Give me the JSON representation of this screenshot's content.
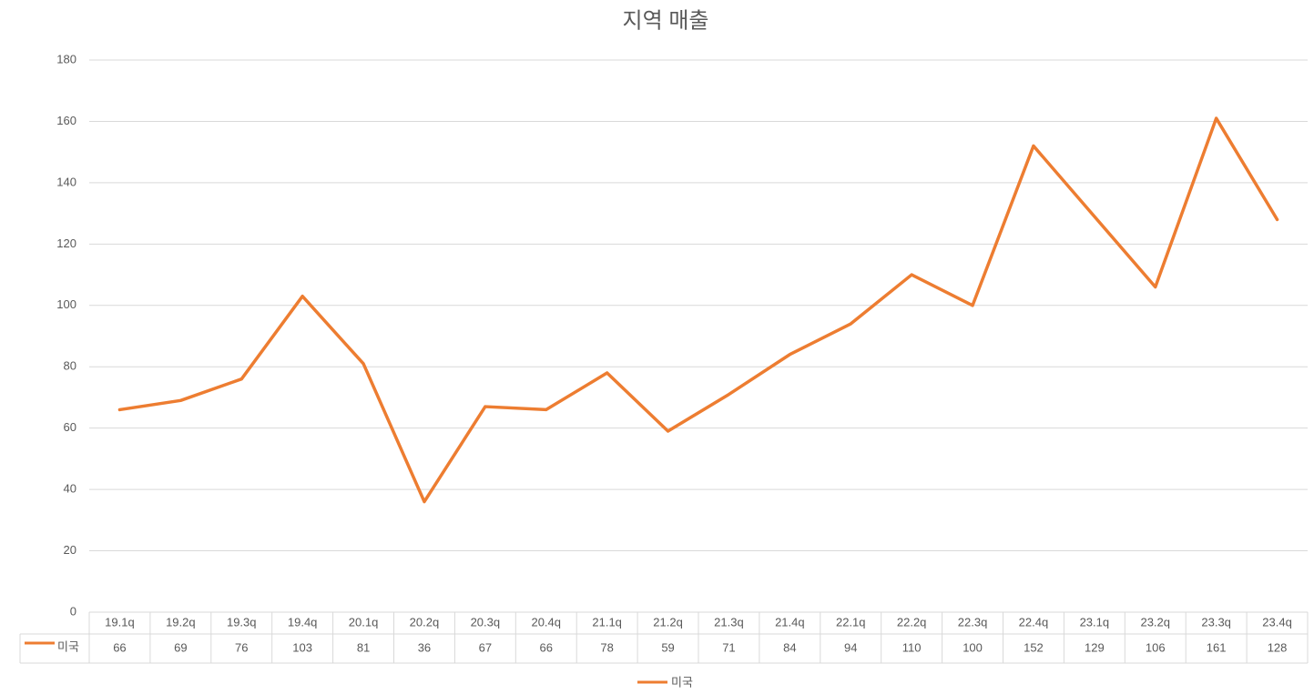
{
  "chart_data": {
    "type": "line",
    "title": "지역 매출",
    "categories": [
      "19.1q",
      "19.2q",
      "19.3q",
      "19.4q",
      "20.1q",
      "20.2q",
      "20.3q",
      "20.4q",
      "21.1q",
      "21.2q",
      "21.3q",
      "21.4q",
      "22.1q",
      "22.2q",
      "22.3q",
      "22.4q",
      "23.1q",
      "23.2q",
      "23.3q",
      "23.4q"
    ],
    "series": [
      {
        "name": "미국",
        "color": "#ed7d31",
        "values": [
          66,
          69,
          76,
          103,
          81,
          36,
          67,
          66,
          78,
          59,
          71,
          84,
          94,
          110,
          100,
          152,
          129,
          106,
          161,
          128
        ]
      }
    ],
    "ylim": [
      0,
      180
    ],
    "yticks": [
      0,
      20,
      40,
      60,
      80,
      100,
      120,
      140,
      160,
      180
    ],
    "grid": true,
    "legend": "bottom"
  }
}
